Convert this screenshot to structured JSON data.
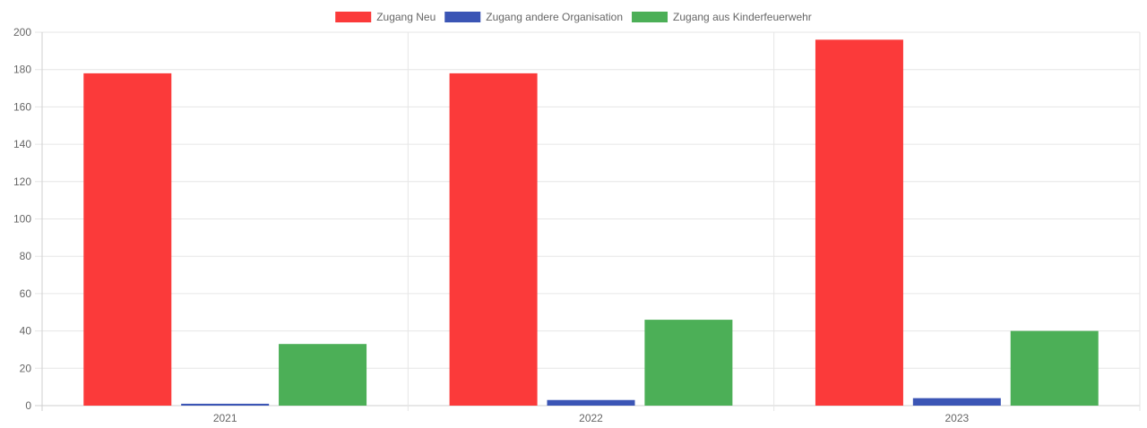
{
  "chart_data": {
    "type": "bar",
    "categories": [
      "2021",
      "2022",
      "2023"
    ],
    "series": [
      {
        "name": "Zugang Neu",
        "color": "#fb3a3a",
        "values": [
          178,
          178,
          196
        ]
      },
      {
        "name": "Zugang andere Organisation",
        "color": "#3b55b5",
        "values": [
          1,
          3,
          4
        ]
      },
      {
        "name": "Zugang aus Kinderfeuerwehr",
        "color": "#4caf57",
        "values": [
          33,
          46,
          40
        ]
      }
    ],
    "ylim": [
      0,
      200
    ],
    "yticks": [
      "0",
      "20",
      "40",
      "60",
      "80",
      "100",
      "120",
      "140",
      "160",
      "180",
      "200"
    ],
    "grid": true,
    "legend_position": "top"
  }
}
